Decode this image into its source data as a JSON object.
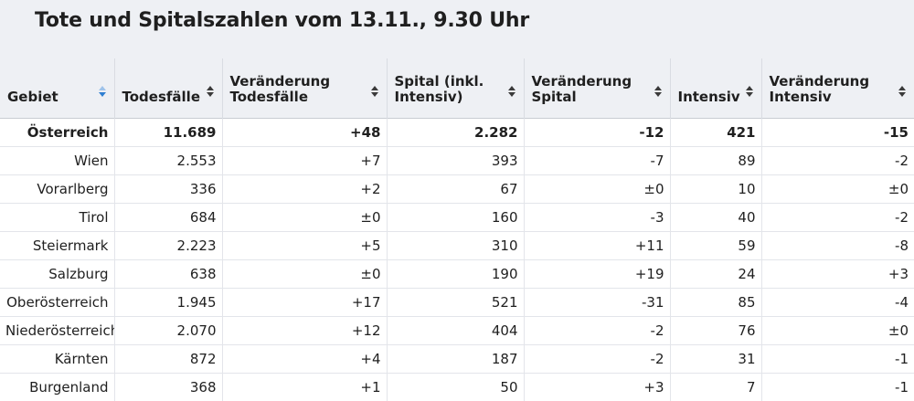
{
  "title": "Tote und Spitalszahlen vom 13.11., 9.30 Uhr",
  "colors": {
    "header_bg": "#eef0f4",
    "sort_active": "#2f7fd1",
    "sort_inactive": "#3a3a3a"
  },
  "columns": [
    {
      "label": "Gebiet",
      "sort": "active-desc"
    },
    {
      "label": "Todesfälle",
      "sort": "none"
    },
    {
      "label": "Veränderung Todesfälle",
      "sort": "none"
    },
    {
      "label": "Spital (inkl. Intensiv)",
      "sort": "none"
    },
    {
      "label": "Veränderung Spital",
      "sort": "none"
    },
    {
      "label": "Intensiv",
      "sort": "none"
    },
    {
      "label": "Veränderung Intensiv",
      "sort": "none"
    }
  ],
  "rows": [
    [
      "Österreich",
      "11.689",
      "+48",
      "2.282",
      "-12",
      "421",
      "-15"
    ],
    [
      "Wien",
      "2.553",
      "+7",
      "393",
      "-7",
      "89",
      "-2"
    ],
    [
      "Vorarlberg",
      "336",
      "+2",
      "67",
      "±0",
      "10",
      "±0"
    ],
    [
      "Tirol",
      "684",
      "±0",
      "160",
      "-3",
      "40",
      "-2"
    ],
    [
      "Steiermark",
      "2.223",
      "+5",
      "310",
      "+11",
      "59",
      "-8"
    ],
    [
      "Salzburg",
      "638",
      "±0",
      "190",
      "+19",
      "24",
      "+3"
    ],
    [
      "Oberösterreich",
      "1.945",
      "+17",
      "521",
      "-31",
      "85",
      "-4"
    ],
    [
      "Niederösterreich",
      "2.070",
      "+12",
      "404",
      "-2",
      "76",
      "±0"
    ],
    [
      "Kärnten",
      "872",
      "+4",
      "187",
      "-2",
      "31",
      "-1"
    ],
    [
      "Burgenland",
      "368",
      "+1",
      "50",
      "+3",
      "7",
      "-1"
    ]
  ]
}
